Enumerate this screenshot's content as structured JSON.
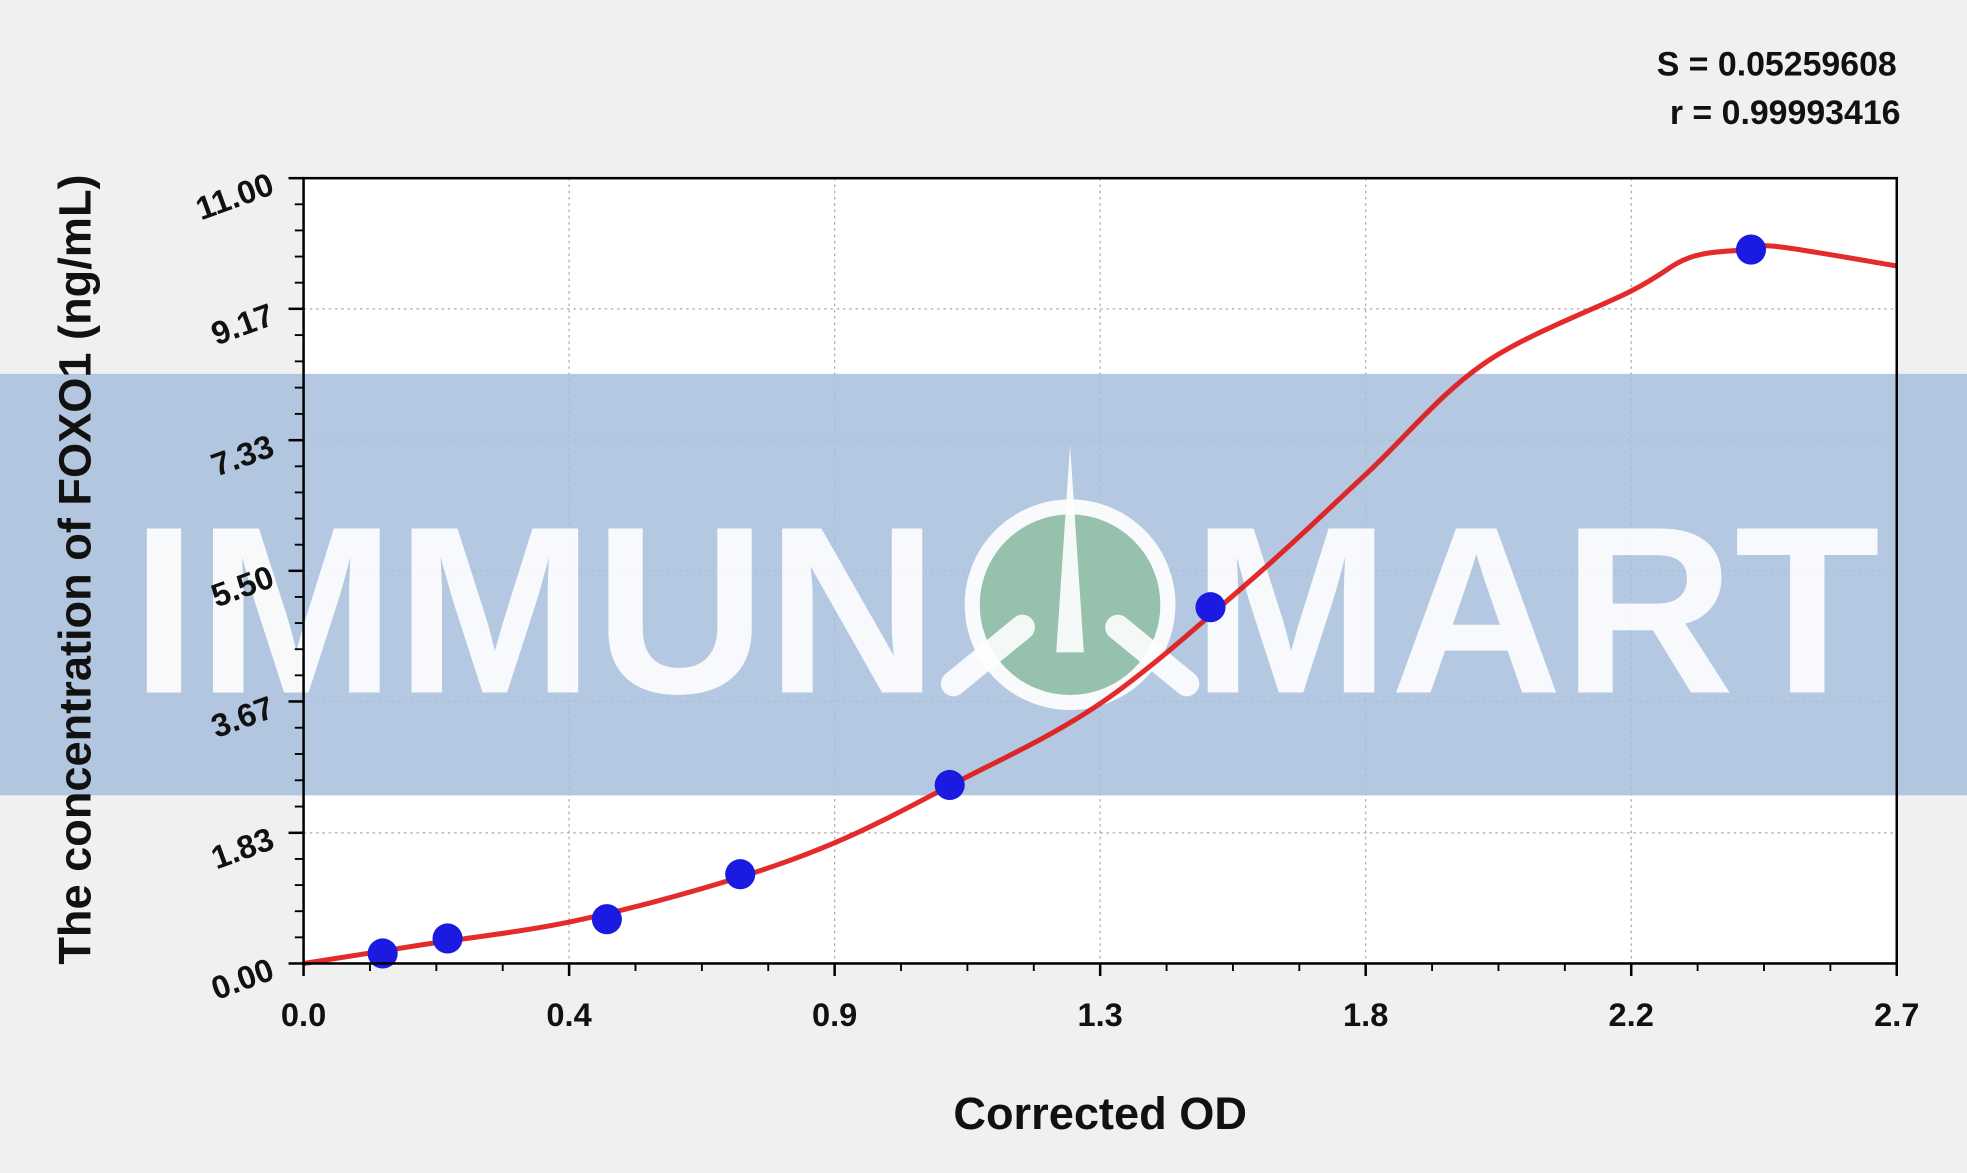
{
  "chart_data": {
    "type": "scatter",
    "x_label": "Corrected OD",
    "y_label": "The concentration of FOXO1 (ng/mL)",
    "annotations": [
      "S = 0.05259608",
      "r = 0.99993416"
    ],
    "watermark": [
      "IMMUN",
      "MART"
    ],
    "xlim": [
      0,
      2.7
    ],
    "ylim": [
      0,
      11
    ],
    "xticks": [
      {
        "value": 0,
        "label": "0.0"
      },
      {
        "value": 0.45,
        "label": "0.4"
      },
      0.9,
      {
        "value": 1.35,
        "label": "1.3"
      },
      1.8,
      {
        "value": 2.25,
        "label": "2.2"
      },
      2.7
    ],
    "yticks": [
      {
        "value": 0,
        "label": "0.00"
      },
      1.83,
      3.67,
      {
        "value": 5.5,
        "label": "5.50"
      },
      7.33,
      9.17,
      {
        "value": 11,
        "label": "11.00"
      }
    ],
    "grid": true,
    "series": [
      {
        "mode": "line",
        "color": "#e01414",
        "x": [
          0,
          0.2,
          0.45,
          0.7,
          0.9,
          1.1,
          1.35,
          1.6,
          1.8,
          2.0,
          2.25,
          2.35,
          2.45,
          2.5,
          2.7
        ],
        "values": [
          0,
          0.26,
          0.58,
          1.11,
          1.69,
          2.51,
          3.64,
          5.33,
          6.85,
          8.4,
          9.42,
          9.89,
          10.0,
          10.04,
          9.77
        ]
      },
      {
        "mode": "points",
        "color": "#1a1ae0",
        "x": [
          0.134,
          0.244,
          0.514,
          0.74,
          1.095,
          1.537,
          2.453
        ],
        "values": [
          0.14,
          0.35,
          0.62,
          1.25,
          2.5,
          4.99,
          10.0
        ]
      }
    ]
  }
}
